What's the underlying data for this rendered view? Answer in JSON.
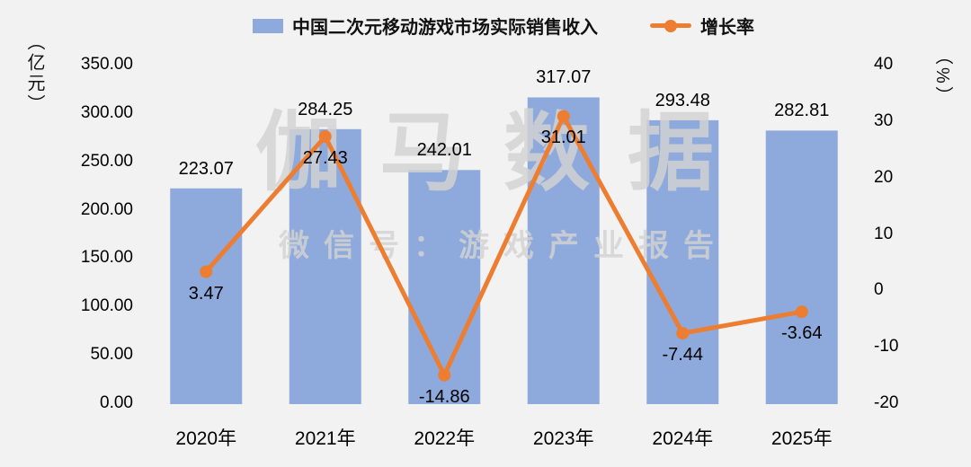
{
  "chart_data": {
    "type": "combo",
    "categories": [
      "2020年",
      "2021年",
      "2022年",
      "2023年",
      "2024年",
      "2025年"
    ],
    "series": [
      {
        "name": "中国二次元移动游戏市场实际销售收入",
        "type": "bar",
        "axis": "left",
        "color": "#8EA9DB",
        "values": [
          223.07,
          284.25,
          242.01,
          317.07,
          293.48,
          282.81
        ]
      },
      {
        "name": "增长率",
        "type": "line",
        "axis": "right",
        "color": "#ED7D31",
        "values": [
          3.47,
          27.43,
          -14.86,
          31.01,
          -7.44,
          -3.64
        ]
      }
    ],
    "left_axis": {
      "unit": "（亿元）",
      "min": 0,
      "max": 350,
      "step": 50,
      "ticks": [
        "350.00",
        "300.00",
        "250.00",
        "200.00",
        "150.00",
        "100.00",
        "50.00",
        "0.00"
      ]
    },
    "right_axis": {
      "unit": "（%）",
      "min": -20,
      "max": 40,
      "step": 10,
      "ticks": [
        "40",
        "30",
        "20",
        "10",
        "0",
        "-10",
        "-20"
      ]
    },
    "legend": {
      "position": "top-center",
      "items": [
        "中国二次元移动游戏市场实际销售收入",
        "增长率"
      ]
    },
    "grid": false,
    "watermark": {
      "line1": "伽马数据",
      "line2": "微信号：游戏产业报告"
    }
  }
}
